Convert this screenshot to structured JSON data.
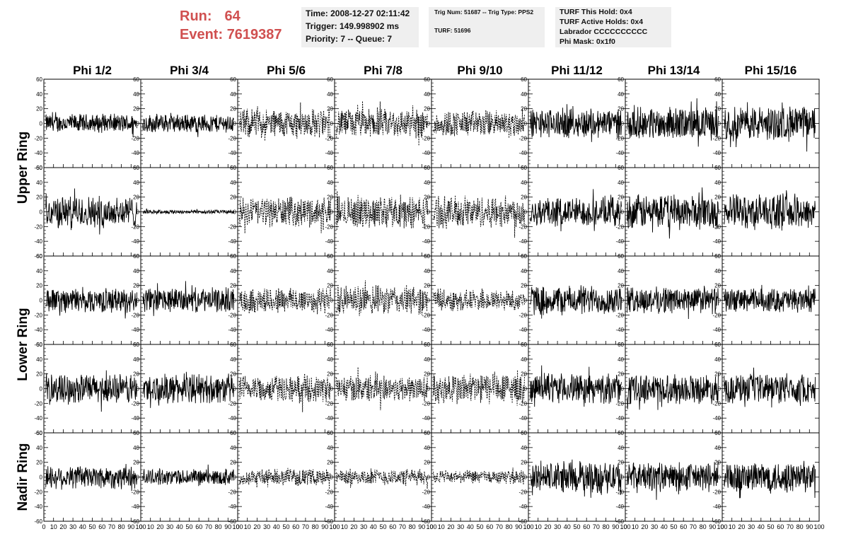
{
  "header": {
    "run_label": "Run:",
    "run_value": "64",
    "event_label": "Event:",
    "event_value": "7619387",
    "time_text": "Time: 2008-12-27 02:11:42",
    "trigger_text": "Trigger: 149.998902 ms",
    "priority_text": "Priority: 7 -- Queue: 7",
    "trig_num_text": "Trig Num: 51687 -- Trig Type: PPS2",
    "turf_text": "TURF: 51696",
    "turf_hold_text": "TURF This Hold: 0x4",
    "turf_active_text": "TURF Active Holds: 0x4",
    "labrador_text": "Labrador CCCCCCCCCC",
    "phi_mask_text": "Phi Mask: 0x1f0"
  },
  "chart_data": {
    "type": "line",
    "layout": "grid of waveform panels, 5 rows x 8 columns",
    "columns": [
      "Phi 1/2",
      "Phi 3/4",
      "Phi 5/6",
      "Phi 7/8",
      "Phi 9/10",
      "Phi 11/12",
      "Phi 13/14",
      "Phi 15/16"
    ],
    "rows": [
      "Upper Ring",
      "Upper Ring",
      "Lower Ring",
      "Lower Ring",
      "Nadir Ring"
    ],
    "row_labels": [
      "Upper Ring",
      "Lower Ring",
      "Nadir Ring"
    ],
    "ylim": [
      -60,
      60
    ],
    "yticks": [
      -60,
      -40,
      -20,
      0,
      20,
      40,
      60
    ],
    "xlim": [
      0,
      100
    ],
    "xticks": [
      0,
      10,
      20,
      30,
      40,
      50,
      60,
      70,
      80,
      90,
      100
    ],
    "dashed_columns": [
      2,
      3,
      4
    ],
    "amplitude": [
      [
        14,
        14,
        22,
        22,
        20,
        22,
        24,
        26
      ],
      [
        24,
        3,
        22,
        24,
        24,
        22,
        26,
        26
      ],
      [
        18,
        18,
        20,
        22,
        16,
        22,
        20,
        18
      ],
      [
        22,
        22,
        20,
        20,
        24,
        22,
        22,
        22
      ],
      [
        18,
        12,
        12,
        12,
        10,
        24,
        22,
        24
      ]
    ],
    "samples_per_trace": 260
  }
}
